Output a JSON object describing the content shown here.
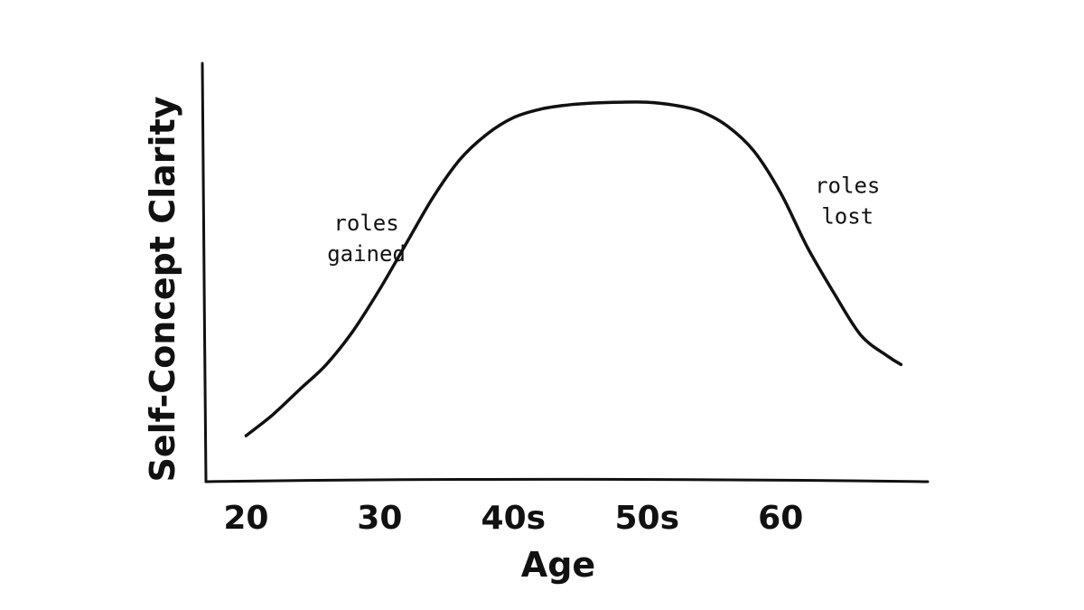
{
  "chart_data": {
    "type": "line",
    "xlabel": "Age",
    "ylabel": "Self-Concept Clarity",
    "categories": [
      "20",
      "30",
      "40s",
      "50s",
      "60"
    ],
    "x_values": [
      20,
      30,
      40,
      50,
      60
    ],
    "xlim": [
      17,
      71
    ],
    "ylim": [
      0,
      100
    ],
    "grid": false,
    "series": [
      {
        "x": [
          20,
          22,
          24,
          26,
          28,
          30,
          32,
          34,
          36,
          38,
          40,
          42,
          44,
          46,
          48,
          50,
          52,
          54,
          56,
          58,
          60,
          62,
          64,
          66,
          68,
          69
        ],
        "y": [
          11,
          16,
          22,
          28,
          36,
          46,
          57,
          68,
          77,
          83,
          87,
          89,
          90,
          90.5,
          90.7,
          90.7,
          90,
          88.5,
          85,
          79,
          69,
          56,
          45,
          35,
          30,
          28
        ]
      }
    ],
    "annotations": [
      {
        "lines": [
          "roles",
          "gained"
        ],
        "x": 29,
        "y": 60
      },
      {
        "lines": [
          "roles",
          "lost"
        ],
        "x": 65,
        "y": 69
      }
    ]
  }
}
